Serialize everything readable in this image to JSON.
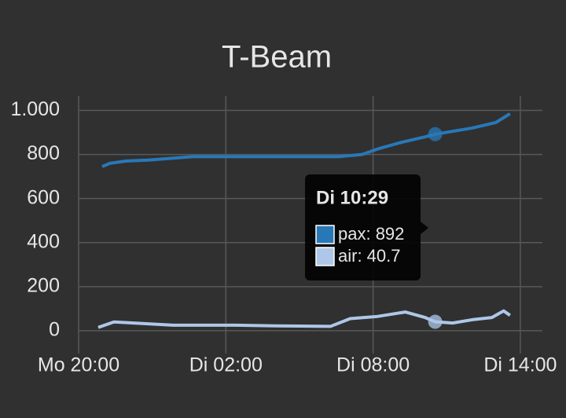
{
  "chart_data": {
    "type": "line",
    "title": "T-Beam",
    "xlim": [
      0,
      18.9
    ],
    "xticks": [
      {
        "value": 0,
        "label": "Mo 20:00"
      },
      {
        "value": 6,
        "label": "Di 02:00"
      },
      {
        "value": 12,
        "label": "Di 08:00"
      },
      {
        "value": 18,
        "label": "Di 14:00"
      }
    ],
    "ylim": [
      -68,
      1066
    ],
    "yticks": [
      0,
      200,
      400,
      600,
      800,
      {
        "value": 1000,
        "label": "1.000"
      }
    ],
    "grid": true,
    "series": [
      {
        "name": "pax",
        "color": "#2878b8",
        "x": [
          0.96,
          1.28,
          1.92,
          2.89,
          4.65,
          10.59,
          11.55,
          12.19,
          13.15,
          14.12,
          14.53,
          16.04,
          17.0,
          17.58
        ],
        "values": [
          745,
          760,
          770,
          775,
          790,
          790,
          800,
          825,
          855,
          880,
          892,
          920,
          945,
          985
        ]
      },
      {
        "name": "air",
        "color": "#aec7e8",
        "x": [
          0.8,
          1.44,
          2.25,
          3.85,
          6.42,
          8.02,
          10.27,
          11.07,
          12.19,
          13.31,
          14.12,
          14.53,
          15.24,
          16.04,
          16.84,
          17.32,
          17.58
        ],
        "values": [
          15,
          40,
          35,
          25,
          25,
          22,
          20,
          55,
          65,
          85,
          60,
          40.7,
          35,
          50,
          60,
          90,
          70
        ]
      }
    ],
    "tooltip": {
      "label": "Di 10:29",
      "x": 14.53,
      "entries": [
        {
          "label": "pax: 892",
          "value": 892
        },
        {
          "label": "air: 40.7",
          "value": 40.7
        }
      ]
    }
  }
}
